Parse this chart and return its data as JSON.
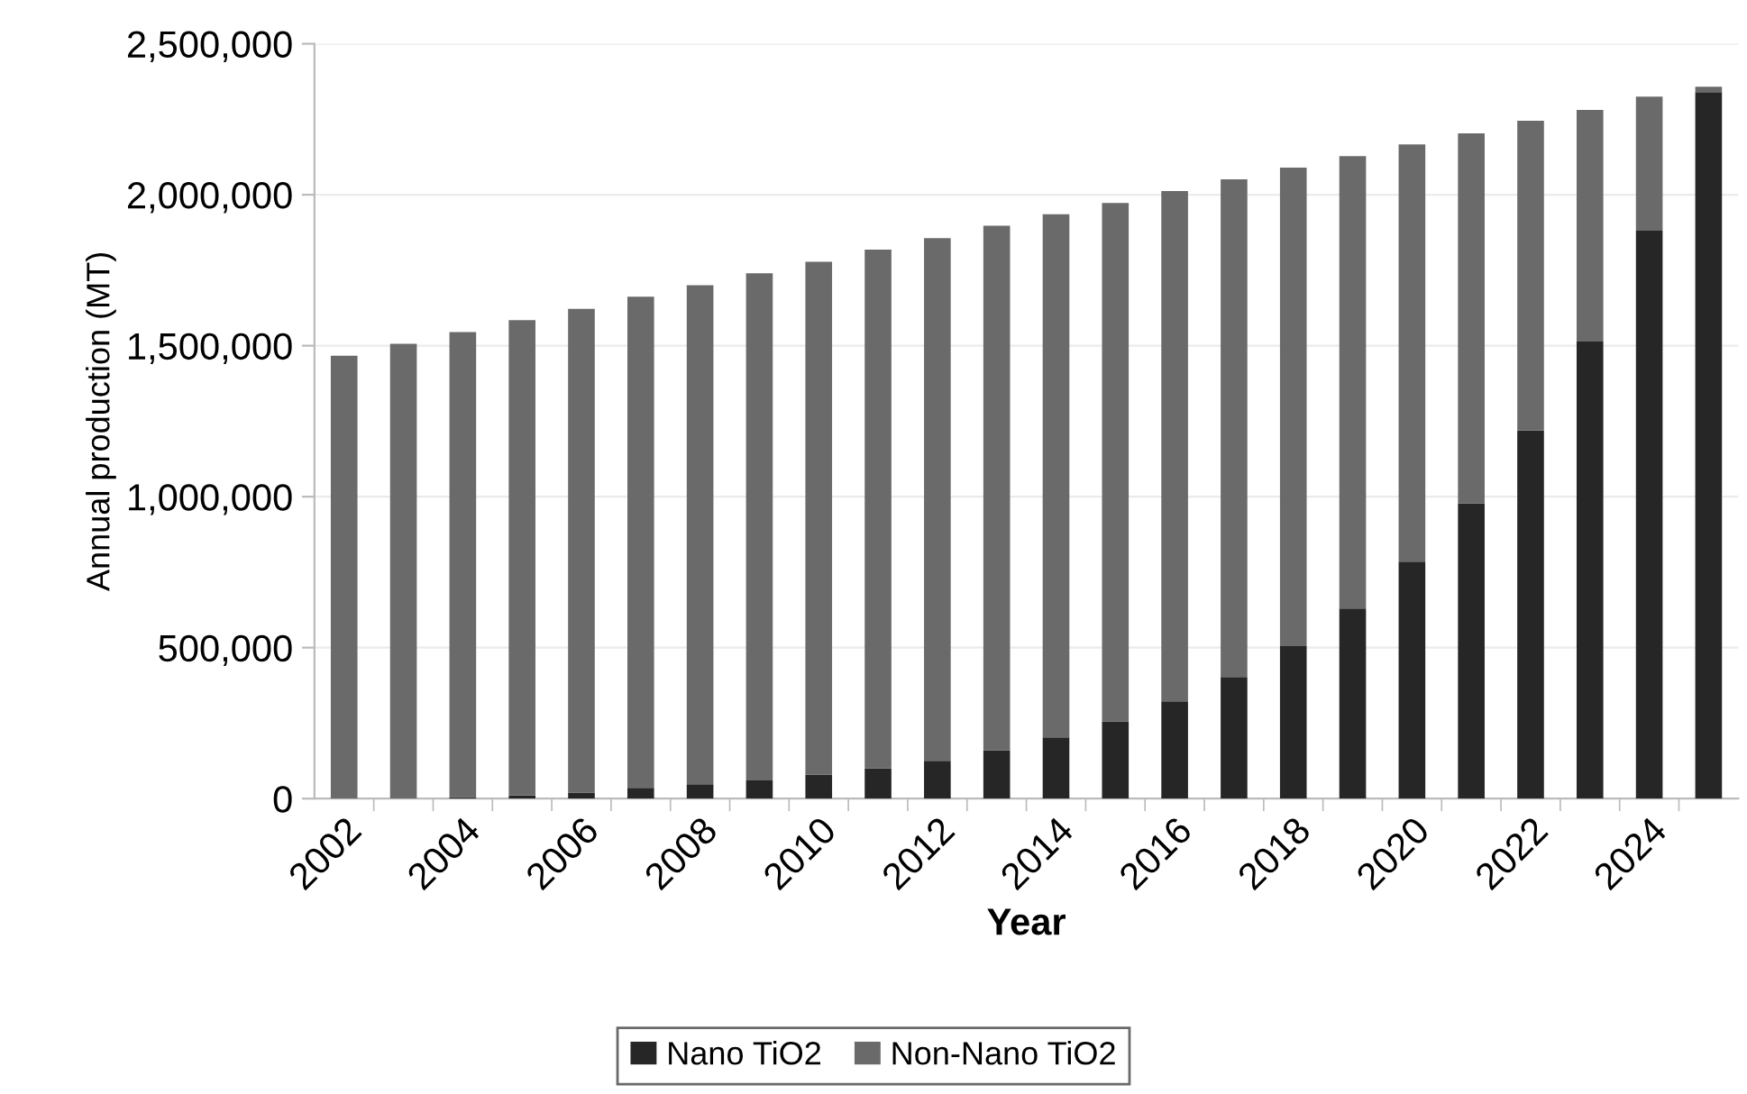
{
  "chart_data": {
    "type": "bar",
    "stacked": true,
    "xlabel": "Year",
    "ylabel": "Annual production (MT)",
    "categories": [
      "2002",
      null,
      "2004",
      null,
      "2006",
      null,
      "2008",
      null,
      "2010",
      null,
      "2012",
      null,
      "2014",
      null,
      "2016",
      null,
      "2018",
      null,
      "2020",
      null,
      "2022",
      null,
      "2024",
      null
    ],
    "series": [
      {
        "name": "Nano TiO2",
        "color": "#262626",
        "values": [
          0,
          0,
          5000,
          10000,
          20000,
          36000,
          48000,
          60000,
          80000,
          100000,
          125000,
          160000,
          203000,
          255000,
          322000,
          403000,
          505000,
          630000,
          785000,
          978000,
          1219000,
          1514000,
          1881000,
          2340000
        ]
      },
      {
        "name": "Non-Nano TiO2",
        "color": "#6a6a6a",
        "values": [
          1467000,
          1506000,
          1540000,
          1575000,
          1602000,
          1626000,
          1652000,
          1680000,
          1698000,
          1718000,
          1731000,
          1737000,
          1732000,
          1718000,
          1690000,
          1648000,
          1585000,
          1498000,
          1382000,
          1225000,
          1026000,
          767000,
          444000,
          18000
        ]
      }
    ],
    "ylim": [
      0,
      2500000
    ],
    "yticks": [
      {
        "value": 0,
        "label": "0"
      },
      {
        "value": 500000,
        "label": "500,000"
      },
      {
        "value": 1000000,
        "label": "1,000,000"
      },
      {
        "value": 1500000,
        "label": "1,500,000"
      },
      {
        "value": 2000000,
        "label": "2,000,000"
      },
      {
        "value": 2500000,
        "label": "2,500,000"
      }
    ],
    "grid": "y",
    "legend": "bottom"
  }
}
